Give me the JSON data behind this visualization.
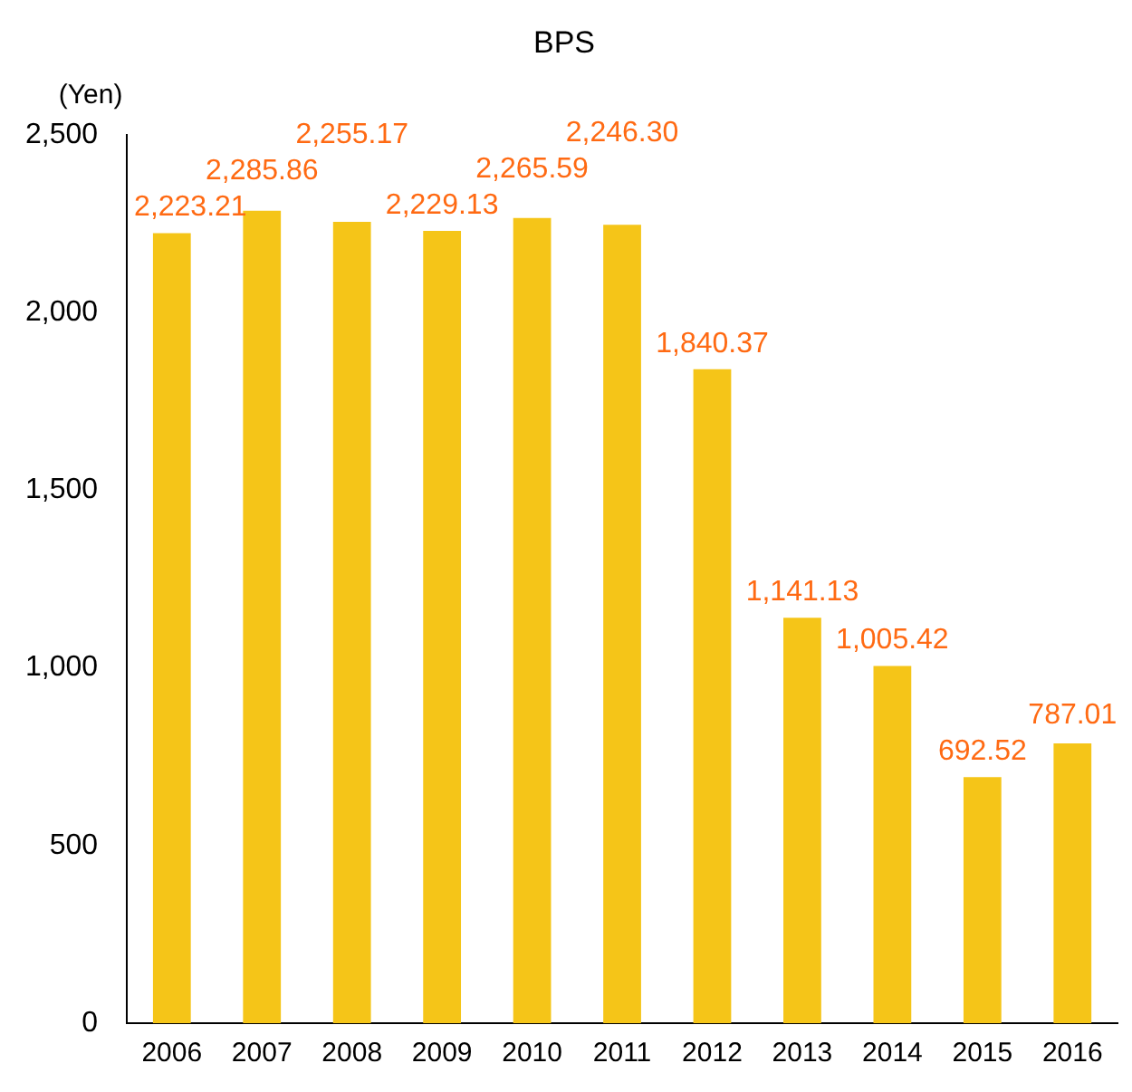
{
  "chart_data": {
    "type": "bar",
    "title": "BPS",
    "ylabel": "(Yen)",
    "categories": [
      "2006",
      "2007",
      "2008",
      "2009",
      "2010",
      "2011",
      "2012",
      "2013",
      "2014",
      "2015",
      "2016"
    ],
    "values": [
      2223.21,
      2285.86,
      2255.17,
      2229.13,
      2265.59,
      2246.3,
      1840.37,
      1141.13,
      1005.42,
      692.52,
      787.01
    ],
    "value_labels": [
      "2,223.21",
      "2,285.86",
      "2,255.17",
      "2,229.13",
      "2,265.59",
      "2,246.30",
      "1,840.37",
      "1,141.13",
      "1,005.42",
      "692.52",
      "787.01"
    ],
    "color": "#f5c518",
    "ylim": [
      0,
      2500
    ],
    "yticks": [
      {
        "value": 0,
        "label": "0"
      },
      {
        "value": 500,
        "label": "500"
      },
      {
        "value": 1000,
        "label": "1,000"
      },
      {
        "value": 1500,
        "label": "1,500"
      },
      {
        "value": 2000,
        "label": "2,000"
      },
      {
        "value": 2500,
        "label": "2,500"
      }
    ],
    "grid": false,
    "legend": false
  }
}
